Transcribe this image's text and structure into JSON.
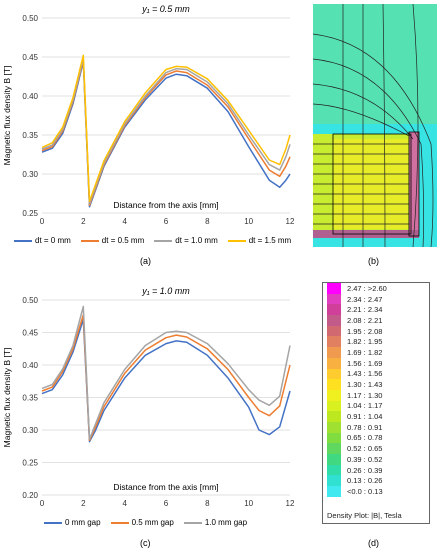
{
  "panel_labels": {
    "a": "(a)",
    "b": "(b)",
    "c": "(c)",
    "d": "(d)"
  },
  "chart_data": [
    {
      "type": "line",
      "title": "y₁ = 0.5 mm",
      "xlabel": "Distance from the axis [mm]",
      "ylabel": "Magnetic flux density B [T]",
      "xlim": [
        0,
        12
      ],
      "ylim": [
        0.25,
        0.5
      ],
      "xticks": [
        "0",
        "2",
        "4",
        "6",
        "8",
        "10",
        "12"
      ],
      "yticks": [
        "0.25",
        "0.30",
        "0.35",
        "0.40",
        "0.45",
        "0.50"
      ],
      "x": [
        0,
        0.5,
        1,
        1.5,
        2,
        2.3,
        2.6,
        3,
        4,
        5,
        6,
        6.5,
        7,
        8,
        9,
        10,
        11,
        11.5,
        11.8,
        12
      ],
      "series": [
        {
          "name": "dt = 0 mm",
          "color": "#4472c4",
          "values": [
            0.328,
            0.333,
            0.352,
            0.39,
            0.444,
            0.258,
            0.28,
            0.31,
            0.36,
            0.395,
            0.423,
            0.428,
            0.426,
            0.41,
            0.38,
            0.335,
            0.292,
            0.283,
            0.292,
            0.3
          ]
        },
        {
          "name": "dt = 0.5 mm",
          "color": "#ed7d31",
          "values": [
            0.33,
            0.335,
            0.355,
            0.393,
            0.446,
            0.26,
            0.282,
            0.312,
            0.362,
            0.398,
            0.427,
            0.432,
            0.43,
            0.414,
            0.386,
            0.345,
            0.305,
            0.297,
            0.31,
            0.322
          ]
        },
        {
          "name": "dt = 1.0 mm",
          "color": "#a5a5a5",
          "values": [
            0.332,
            0.337,
            0.357,
            0.395,
            0.448,
            0.262,
            0.284,
            0.314,
            0.364,
            0.4,
            0.43,
            0.435,
            0.434,
            0.418,
            0.39,
            0.35,
            0.312,
            0.305,
            0.322,
            0.338
          ]
        },
        {
          "name": "dt = 1.5 mm",
          "color": "#ffc000",
          "values": [
            0.334,
            0.34,
            0.36,
            0.398,
            0.452,
            0.265,
            0.287,
            0.317,
            0.367,
            0.404,
            0.434,
            0.438,
            0.437,
            0.422,
            0.394,
            0.356,
            0.318,
            0.312,
            0.332,
            0.35
          ]
        }
      ]
    },
    {
      "type": "line",
      "title": "y₁ = 1.0 mm",
      "xlabel": "Distance from the axis [mm]",
      "ylabel": "Magnetic flux density B [T]",
      "xlim": [
        0,
        12
      ],
      "ylim": [
        0.2,
        0.5
      ],
      "xticks": [
        "0",
        "2",
        "4",
        "6",
        "8",
        "10",
        "12"
      ],
      "yticks": [
        "0.20",
        "0.25",
        "0.30",
        "0.35",
        "0.40",
        "0.45",
        "0.50"
      ],
      "x": [
        0,
        0.5,
        1,
        1.5,
        2,
        2.3,
        2.6,
        3,
        4,
        5,
        6,
        6.5,
        7,
        8,
        9,
        10,
        10.5,
        11,
        11.5,
        12
      ],
      "series": [
        {
          "name": "0 mm gap",
          "color": "#4472c4",
          "values": [
            0.356,
            0.362,
            0.385,
            0.42,
            0.47,
            0.282,
            0.3,
            0.33,
            0.38,
            0.415,
            0.433,
            0.437,
            0.435,
            0.415,
            0.38,
            0.335,
            0.3,
            0.293,
            0.305,
            0.36
          ]
        },
        {
          "name": "0.5 mm gap",
          "color": "#ed7d31",
          "values": [
            0.36,
            0.366,
            0.39,
            0.425,
            0.477,
            0.284,
            0.305,
            0.336,
            0.387,
            0.423,
            0.442,
            0.446,
            0.443,
            0.425,
            0.393,
            0.35,
            0.33,
            0.322,
            0.337,
            0.4
          ]
        },
        {
          "name": "1.0 mm gap",
          "color": "#a5a5a5",
          "values": [
            0.364,
            0.37,
            0.394,
            0.43,
            0.49,
            0.286,
            0.31,
            0.342,
            0.393,
            0.43,
            0.45,
            0.452,
            0.45,
            0.433,
            0.402,
            0.362,
            0.346,
            0.338,
            0.352,
            0.43
          ]
        }
      ]
    }
  ],
  "colorbar": {
    "title": "Density Plot: |B|, Tesla",
    "entries": [
      {
        "label": "2.47 : >2.60",
        "color": "#ff00ff"
      },
      {
        "label": "2.34 : 2.47",
        "color": "#e040c0"
      },
      {
        "label": "2.21 : 2.34",
        "color": "#d0409a"
      },
      {
        "label": "2.08 : 2.21",
        "color": "#c25a8a"
      },
      {
        "label": "1.95 : 2.08",
        "color": "#d06a70"
      },
      {
        "label": "1.82 : 1.95",
        "color": "#e08060"
      },
      {
        "label": "1.69 : 1.82",
        "color": "#f09a50"
      },
      {
        "label": "1.56 : 1.69",
        "color": "#f8b040"
      },
      {
        "label": "1.43 : 1.56",
        "color": "#ffcc30"
      },
      {
        "label": "1.30 : 1.43",
        "color": "#ffe020"
      },
      {
        "label": "1.17 : 1.30",
        "color": "#f0f020"
      },
      {
        "label": "1.04 : 1.17",
        "color": "#d8f020"
      },
      {
        "label": "0.91 : 1.04",
        "color": "#bde820"
      },
      {
        "label": "0.78 : 0.91",
        "color": "#a0e030"
      },
      {
        "label": "0.65 : 0.78",
        "color": "#80dd40"
      },
      {
        "label": "0.52 : 0.65",
        "color": "#60d860"
      },
      {
        "label": "0.39 : 0.52",
        "color": "#40d880"
      },
      {
        "label": "0.26 : 0.39",
        "color": "#30dca8"
      },
      {
        "label": "0.13 : 0.26",
        "color": "#30e0d0"
      },
      {
        "label": "<0.0 : 0.13",
        "color": "#40e8f0"
      }
    ]
  }
}
